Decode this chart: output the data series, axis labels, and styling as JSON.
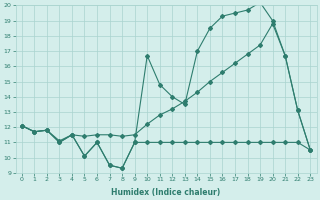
{
  "line1_x": [
    0,
    1,
    2,
    3,
    4,
    5,
    6,
    7,
    8,
    9,
    10,
    11,
    12,
    13,
    14,
    15,
    16,
    17,
    18,
    19,
    20,
    21,
    22,
    23
  ],
  "line1_y": [
    12.1,
    11.7,
    11.8,
    11.0,
    11.5,
    10.1,
    11.0,
    9.5,
    9.3,
    11.0,
    16.7,
    14.8,
    14.0,
    13.5,
    17.0,
    18.5,
    19.3,
    19.5,
    19.7,
    20.2,
    19.0,
    16.7,
    13.1,
    10.5
  ],
  "line2_x": [
    0,
    1,
    2,
    3,
    4,
    5,
    6,
    7,
    8,
    9,
    10,
    11,
    12,
    13,
    14,
    15,
    16,
    17,
    18,
    19,
    20,
    21,
    22,
    23
  ],
  "line2_y": [
    12.1,
    11.7,
    11.8,
    11.1,
    11.5,
    11.4,
    11.5,
    11.5,
    11.4,
    11.5,
    12.2,
    12.8,
    13.2,
    13.7,
    14.3,
    15.0,
    15.6,
    16.2,
    16.8,
    17.4,
    18.8,
    16.7,
    13.1,
    10.5
  ],
  "line3_x": [
    0,
    1,
    2,
    3,
    4,
    5,
    6,
    7,
    8,
    9,
    10,
    11,
    12,
    13,
    14,
    15,
    16,
    17,
    18,
    19,
    20,
    21,
    22,
    23
  ],
  "line3_y": [
    12.1,
    11.7,
    11.8,
    11.0,
    11.5,
    10.1,
    11.0,
    9.5,
    9.3,
    11.0,
    11.0,
    11.0,
    11.0,
    11.0,
    11.0,
    11.0,
    11.0,
    11.0,
    11.0,
    11.0,
    11.0,
    11.0,
    11.0,
    10.5
  ],
  "line_color": "#2e7d6e",
  "bg_color": "#d4eeeb",
  "grid_color": "#aad4cf",
  "xlabel": "Humidex (Indice chaleur)",
  "ylim": [
    9,
    20
  ],
  "xlim": [
    -0.5,
    23.5
  ],
  "yticks": [
    9,
    10,
    11,
    12,
    13,
    14,
    15,
    16,
    17,
    18,
    19,
    20
  ],
  "xticks": [
    0,
    1,
    2,
    3,
    4,
    5,
    6,
    7,
    8,
    9,
    10,
    11,
    12,
    13,
    14,
    15,
    16,
    17,
    18,
    19,
    20,
    21,
    22,
    23
  ],
  "marker": "D",
  "markersize": 2.0,
  "linewidth": 0.8,
  "tick_fontsize": 4.5,
  "xlabel_fontsize": 5.5
}
